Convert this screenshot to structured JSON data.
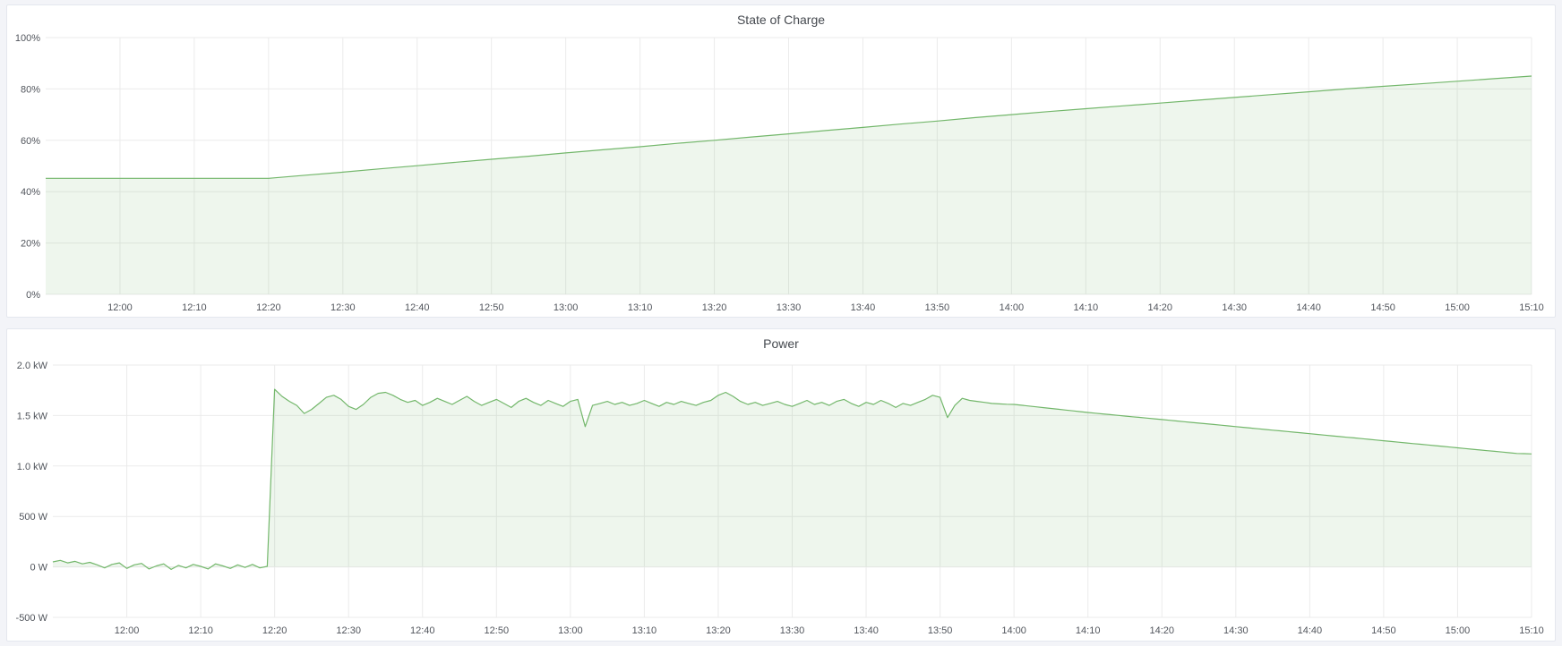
{
  "page": {
    "background_color": "#f3f4f8",
    "panel_background": "#ffffff",
    "grid_color": "#ebebeb",
    "tick_label_color": "#51555c",
    "title_color": "#45494f"
  },
  "chart_data": [
    {
      "type": "area",
      "title": "State of Charge",
      "line_color": "#73b76b",
      "fill_color": "rgba(115,183,107,0.12)",
      "ylim": [
        0,
        100
      ],
      "y_ticks": {
        "values": [
          0,
          20,
          40,
          60,
          80,
          100
        ],
        "labels": [
          "0%",
          "20%",
          "40%",
          "60%",
          "80%",
          "100%"
        ]
      },
      "x_range_minutes": [
        0,
        200
      ],
      "x_ticks": {
        "minutes": [
          10,
          20,
          30,
          40,
          50,
          60,
          70,
          80,
          90,
          100,
          110,
          120,
          130,
          140,
          150,
          160,
          170,
          180,
          190,
          200
        ],
        "labels": [
          "12:00",
          "12:10",
          "12:20",
          "12:30",
          "12:40",
          "12:50",
          "13:00",
          "13:10",
          "13:20",
          "13:30",
          "13:40",
          "13:50",
          "14:00",
          "14:10",
          "14:20",
          "14:30",
          "14:40",
          "14:50",
          "15:00",
          "15:10"
        ]
      },
      "series": [
        {
          "t_start_min": 0,
          "t_step_min": 5,
          "baseline": 0,
          "values": [
            45.2,
            45.2,
            45.2,
            45.2,
            45.2,
            45.2,
            45.2,
            46.4,
            47.6,
            48.9,
            50.1,
            51.4,
            52.6,
            53.8,
            55.1,
            56.3,
            57.5,
            58.8,
            60.0,
            61.3,
            62.5,
            63.8,
            65.0,
            66.3,
            67.5,
            68.8,
            70.0,
            71.2,
            72.3,
            73.4,
            74.5,
            75.6,
            76.7,
            77.8,
            78.9,
            80.0,
            81.0,
            82.0,
            83.0,
            84.0,
            85.0
          ]
        }
      ]
    },
    {
      "type": "area",
      "title": "Power",
      "line_color": "#73b76b",
      "fill_color": "rgba(115,183,107,0.12)",
      "ylim": [
        -500,
        2000
      ],
      "y_ticks": {
        "values": [
          -500,
          0,
          500,
          1000,
          1500,
          2000
        ],
        "labels": [
          "-500 W",
          "0 W",
          "500 W",
          "1.0 kW",
          "1.5 kW",
          "2.0 kW"
        ]
      },
      "x_range_minutes": [
        0,
        200
      ],
      "x_ticks": {
        "minutes": [
          10,
          20,
          30,
          40,
          50,
          60,
          70,
          80,
          90,
          100,
          110,
          120,
          130,
          140,
          150,
          160,
          170,
          180,
          190,
          200
        ],
        "labels": [
          "12:00",
          "12:10",
          "12:20",
          "12:30",
          "12:40",
          "12:50",
          "13:00",
          "13:10",
          "13:20",
          "13:30",
          "13:40",
          "13:50",
          "14:00",
          "14:10",
          "14:20",
          "14:30",
          "14:40",
          "14:50",
          "15:00",
          "15:10"
        ]
      },
      "series": [
        {
          "t_start_min": 0,
          "t_step_min": 1,
          "baseline": 0,
          "values": [
            50,
            65,
            40,
            55,
            30,
            45,
            20,
            -10,
            25,
            40,
            -15,
            20,
            35,
            -20,
            10,
            30,
            -25,
            15,
            -10,
            25,
            5,
            -20,
            30,
            10,
            -15,
            20,
            -5,
            25,
            -10,
            5,
            1760,
            1690,
            1640,
            1600,
            1520,
            1560,
            1620,
            1680,
            1700,
            1660,
            1590,
            1560,
            1610,
            1680,
            1720,
            1730,
            1700,
            1660,
            1630,
            1650,
            1600,
            1630,
            1670,
            1640,
            1610,
            1650,
            1690,
            1640,
            1600,
            1630,
            1660,
            1620,
            1580,
            1640,
            1670,
            1630,
            1600,
            1650,
            1620,
            1590,
            1640,
            1660,
            1390,
            1600,
            1620,
            1640,
            1610,
            1630,
            1600,
            1620,
            1650,
            1620,
            1590,
            1630,
            1610,
            1640,
            1620,
            1600,
            1630,
            1650,
            1700,
            1730,
            1690,
            1640,
            1610,
            1630,
            1600,
            1620,
            1640,
            1610,
            1590,
            1620,
            1650,
            1610,
            1630,
            1600,
            1640,
            1660,
            1620,
            1590,
            1630,
            1610,
            1650,
            1620,
            1580,
            1620,
            1600,
            1630,
            1660,
            1700,
            1680,
            1480,
            1600,
            1670,
            1650,
            1640,
            1630,
            1620,
            1615,
            1612,
            1610,
            1602,
            1594,
            1586,
            1578,
            1570,
            1562,
            1554,
            1546,
            1538,
            1530,
            1523,
            1516,
            1509,
            1502,
            1495,
            1488,
            1481,
            1474,
            1467,
            1460,
            1453,
            1446,
            1439,
            1432,
            1425,
            1418,
            1411,
            1404,
            1397,
            1390,
            1383,
            1376,
            1369,
            1362,
            1355,
            1348,
            1341,
            1334,
            1327,
            1320,
            1313,
            1306,
            1299,
            1292,
            1285,
            1278,
            1271,
            1264,
            1257,
            1250,
            1243,
            1236,
            1229,
            1222,
            1215,
            1208,
            1201,
            1194,
            1187,
            1180,
            1173,
            1166,
            1159,
            1152,
            1145,
            1138,
            1131,
            1124,
            1122,
            1120
          ]
        }
      ]
    }
  ]
}
